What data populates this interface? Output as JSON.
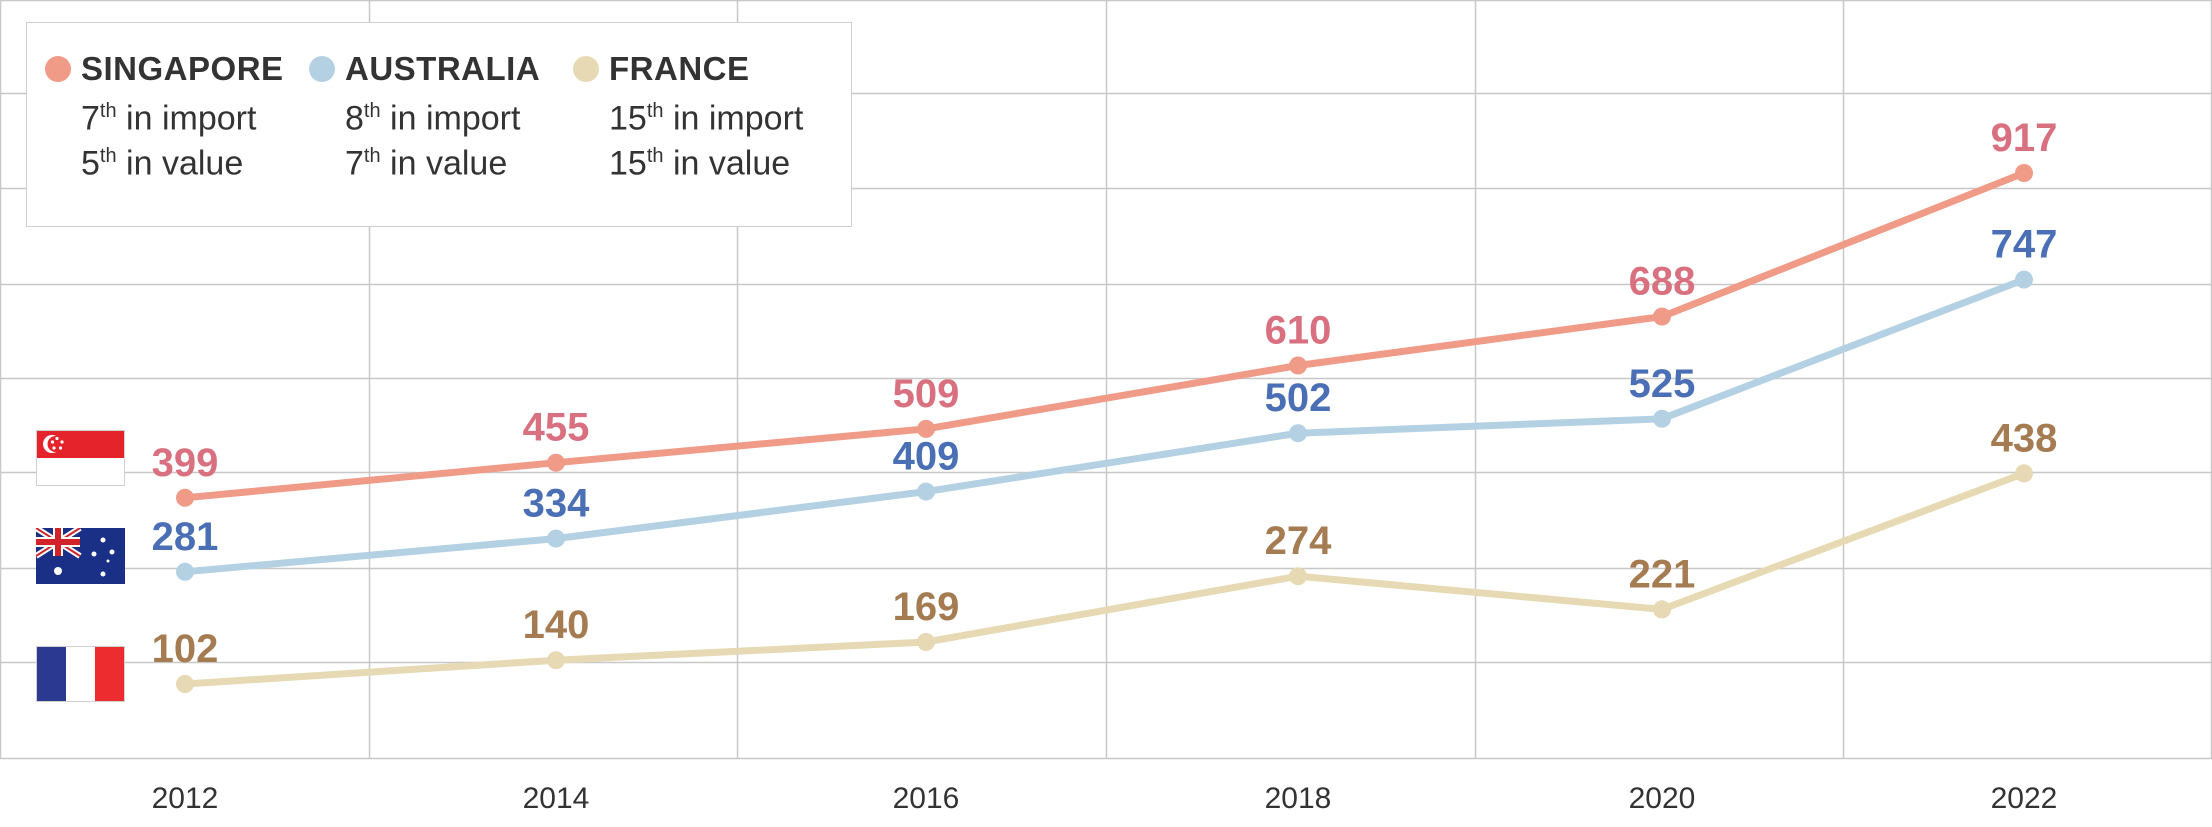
{
  "chart_data": {
    "type": "line",
    "x": [
      "2012",
      "2014",
      "2016",
      "2018",
      "2020",
      "2022"
    ],
    "series": [
      {
        "name": "SINGAPORE",
        "values": [
          399,
          455,
          509,
          610,
          688,
          917
        ],
        "line_color": "#f09a88",
        "label_color": "#d9707f"
      },
      {
        "name": "AUSTRALIA",
        "values": [
          281,
          334,
          409,
          502,
          525,
          747
        ],
        "line_color": "#b3d1e3",
        "label_color": "#4a6fb5"
      },
      {
        "name": "FRANCE",
        "values": [
          102,
          140,
          169,
          274,
          221,
          438
        ],
        "line_color": "#e6d9b3",
        "label_color": "#a57c52"
      }
    ],
    "grid": true,
    "legend_position": "top-left"
  },
  "legend": [
    {
      "name": "SINGAPORE",
      "color": "#f09a88",
      "import_rank": "7",
      "value_rank": "5",
      "suffix": "th",
      "import_text": " in import",
      "value_text": " in value"
    },
    {
      "name": "AUSTRALIA",
      "color": "#b3d1e3",
      "import_rank": "8",
      "value_rank": "7",
      "suffix": "th",
      "import_text": " in import",
      "value_text": " in value"
    },
    {
      "name": "FRANCE",
      "color": "#e6d9b3",
      "import_rank": "15",
      "value_rank": "15",
      "suffix": "th",
      "import_text": " in import",
      "value_text": " in value"
    }
  ],
  "flags": [
    {
      "icon": "singapore-flag-icon"
    },
    {
      "icon": "australia-flag-icon"
    },
    {
      "icon": "france-flag-icon"
    }
  ]
}
